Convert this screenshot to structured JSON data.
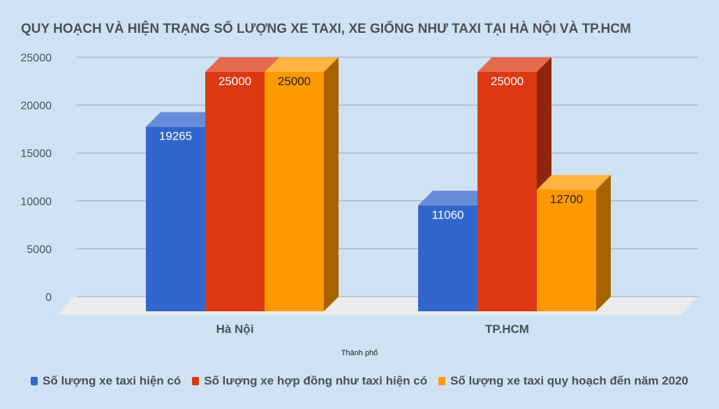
{
  "chart_data": {
    "type": "bar",
    "title": "QUY HOẠCH VÀ HIỆN TRẠNG SỐ LƯỢNG XE TAXI, XE GIỐNG NHƯ TAXI TẠI HÀ NỘI VÀ TP.HCM",
    "xlabel": "Thành phố",
    "ylabel": "",
    "ylim": [
      0,
      25000
    ],
    "yticks": [
      "0",
      "5000",
      "10000",
      "15000",
      "20000",
      "25000"
    ],
    "categories": [
      "Hà Nội",
      "TP.HCM"
    ],
    "grid": true,
    "style": "3d",
    "legend_position": "bottom",
    "series": [
      {
        "name": "Số lượng xe taxi hiện có",
        "values": [
          19265,
          11060
        ],
        "color": "#3366cc",
        "label_color": "#ffffff"
      },
      {
        "name": "Số lượng xe hợp đồng như taxi hiện có",
        "values": [
          25000,
          25000
        ],
        "color": "#dc3912",
        "label_color": "#ffffff"
      },
      {
        "name": "Số lượng xe taxi quy hoạch đến năm 2020",
        "values": [
          25000,
          12700
        ],
        "color": "#ff9900",
        "label_color": "#222222"
      }
    ]
  }
}
